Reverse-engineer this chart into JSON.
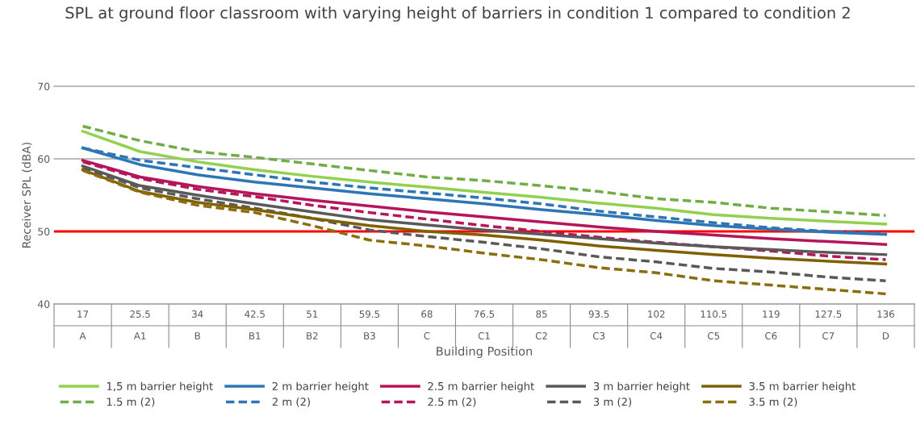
{
  "chart_data": {
    "type": "line",
    "title": "SPL at ground floor classroom with varying height of barriers in condition 1 compared to condition 2",
    "xlabel": "Building Position",
    "ylabel": "Receiver SPL (dBA)",
    "categories": [
      "17\nA",
      "25.5\nA1",
      "34\nB",
      "42.5\nB1",
      "51\nB2",
      "59.5\nB3",
      "68\nC",
      "76.5\nC1",
      "85\nC2",
      "93.5\nC3",
      "102\nC4",
      "110.5\nC5",
      "119\nC6",
      "127.5\nC7",
      "136\nD"
    ],
    "series": [
      {
        "name": "1,5 m barrier height",
        "color": "#92d050",
        "line_style": "solid",
        "values": [
          63.8,
          61.0,
          59.6,
          58.5,
          57.6,
          56.8,
          56.1,
          55.4,
          54.7,
          53.9,
          53.2,
          52.3,
          51.8,
          51.4,
          51.0
        ]
      },
      {
        "name": "1.5 m (2)",
        "color": "#70ad47",
        "line_style": "dashed",
        "values": [
          64.5,
          62.5,
          61.0,
          60.2,
          59.3,
          58.4,
          57.5,
          57.0,
          56.3,
          55.5,
          54.5,
          54.0,
          53.2,
          52.7,
          52.2
        ]
      },
      {
        "name": "2 m barrier height",
        "color": "#2e75b6",
        "line_style": "solid",
        "values": [
          61.5,
          59.2,
          57.8,
          56.8,
          56.0,
          55.2,
          54.5,
          53.8,
          53.0,
          52.3,
          51.5,
          50.8,
          50.3,
          49.9,
          49.6
        ]
      },
      {
        "name": "2 m (2)",
        "color": "#2e75b6",
        "line_style": "dashed",
        "values": [
          61.5,
          59.8,
          58.8,
          57.8,
          56.8,
          56.0,
          55.3,
          54.6,
          53.8,
          52.8,
          52.0,
          51.2,
          50.5,
          50.0,
          49.7
        ]
      },
      {
        "name": "2.5 m barrier height",
        "color": "#b5155a",
        "line_style": "solid",
        "values": [
          59.8,
          57.5,
          56.2,
          55.2,
          54.3,
          53.5,
          52.7,
          52.0,
          51.3,
          50.6,
          50.0,
          49.5,
          49.0,
          48.6,
          48.2
        ]
      },
      {
        "name": "2.5 m (2)",
        "color": "#b5155a",
        "line_style": "dashed",
        "values": [
          59.6,
          57.3,
          55.8,
          54.8,
          53.6,
          52.6,
          51.7,
          50.8,
          50.0,
          49.2,
          48.5,
          47.9,
          47.3,
          46.6,
          46.1
        ]
      },
      {
        "name": "3 m barrier height",
        "color": "#595959",
        "line_style": "solid",
        "values": [
          59.0,
          56.3,
          55.0,
          53.8,
          52.7,
          51.6,
          50.9,
          50.2,
          49.6,
          49.0,
          48.4,
          47.9,
          47.5,
          47.1,
          46.8
        ]
      },
      {
        "name": "3 m (2)",
        "color": "#595959",
        "line_style": "dashed",
        "values": [
          58.8,
          56.0,
          54.5,
          53.2,
          51.8,
          50.2,
          49.3,
          48.5,
          47.6,
          46.5,
          45.8,
          44.9,
          44.4,
          43.7,
          43.2
        ]
      },
      {
        "name": "3.5 m barrier height",
        "color": "#7f6000",
        "line_style": "solid",
        "values": [
          58.5,
          55.5,
          54.0,
          53.0,
          51.8,
          50.8,
          50.0,
          49.5,
          48.8,
          48.0,
          47.4,
          46.8,
          46.3,
          45.9,
          45.5
        ]
      },
      {
        "name": "3.5 m (2)",
        "color": "#8c6d0e",
        "line_style": "dashed",
        "values": [
          58.4,
          55.4,
          53.6,
          52.6,
          50.8,
          48.8,
          48.0,
          47.0,
          46.1,
          45.0,
          44.3,
          43.2,
          42.6,
          42.0,
          41.4
        ]
      }
    ],
    "ylim": [
      40,
      70
    ],
    "yticks": [
      40,
      50,
      60,
      70
    ],
    "grid": "y",
    "legend": "bottom",
    "ref_lines": [
      {
        "axis": "y",
        "value": 50,
        "color": "#ff0000"
      }
    ]
  }
}
